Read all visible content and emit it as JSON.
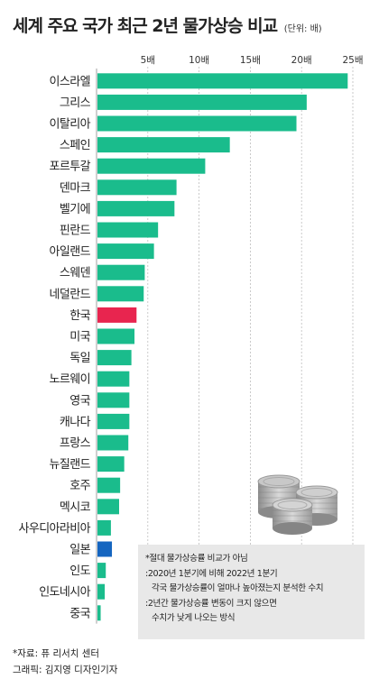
{
  "header": {
    "title": "세계 주요 국가 최근 2년 물가상승 비교",
    "unit": "(단위: 배)"
  },
  "colors": {
    "default_bar": "#1abc8c",
    "highlight_bar": "#e8254f",
    "japan_bar": "#1565c0"
  },
  "chart_data": {
    "type": "bar",
    "orientation": "horizontal",
    "title": "세계 주요 국가 최근 2년 물가상승 비교",
    "unit": "(단위: 배)",
    "xlim": [
      0,
      25
    ],
    "ticks": [
      5,
      10,
      15,
      20,
      25
    ],
    "tick_labels": [
      "5배",
      "10배",
      "15배",
      "20배",
      "25배"
    ],
    "categories": [
      "이스라엘",
      "그리스",
      "이탈리아",
      "스페인",
      "포르투갈",
      "덴마크",
      "벨기에",
      "핀란드",
      "아일랜드",
      "스웨덴",
      "네덜란드",
      "한국",
      "미국",
      "독일",
      "노르웨이",
      "영국",
      "캐나다",
      "프랑스",
      "뉴질랜드",
      "호주",
      "멕시코",
      "사우디아라비아",
      "일본",
      "인도",
      "인도네시아",
      "중국"
    ],
    "values": [
      24.5,
      20.5,
      19.5,
      13.0,
      10.6,
      7.8,
      7.6,
      6.0,
      5.6,
      4.7,
      4.6,
      3.9,
      3.7,
      3.4,
      3.2,
      3.2,
      3.2,
      3.1,
      2.7,
      2.3,
      2.2,
      1.4,
      1.5,
      0.9,
      0.8,
      0.4
    ],
    "highlight": {
      "한국": "highlight",
      "일본": "japan"
    },
    "grid": true,
    "gridlines": "vertical dashed"
  },
  "note": {
    "lines": [
      "*절대 물가상승률 비교가 아님",
      ":2020년 1분기에 비해 2022년 1분기",
      "각국 물가상승률이 얼마나 높아졌는지 분석한 수치",
      ":2년간 물가상승률 변동이 크지 않으면",
      "수치가 낮게 나오는 방식"
    ]
  },
  "source": {
    "source_line": "*자료: 퓨 리서치 센터",
    "credit_line": "그래픽: 김지영 디자인기자"
  }
}
